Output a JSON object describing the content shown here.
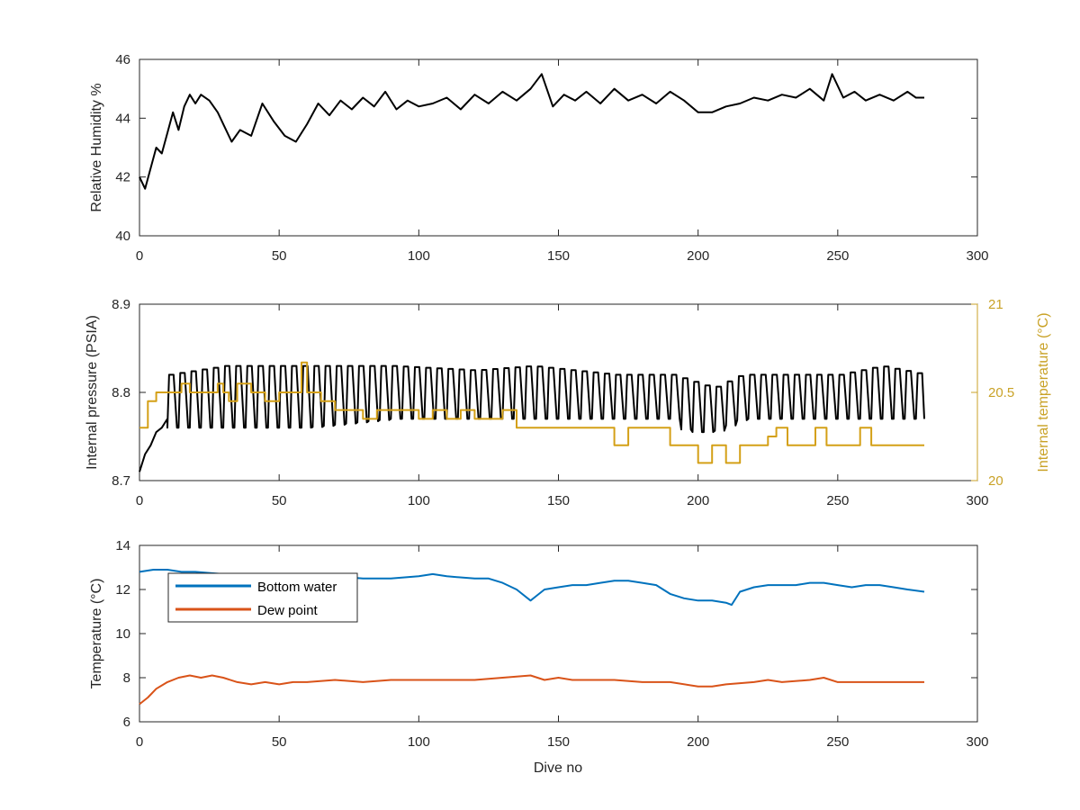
{
  "chart_data": [
    {
      "type": "line",
      "id": "humidity",
      "ylabel": "Relative Humidity %",
      "xlim": [
        0,
        300
      ],
      "ylim": [
        40,
        46
      ],
      "xticks": [
        "0",
        "50",
        "100",
        "150",
        "200",
        "250",
        "300"
      ],
      "yticks": [
        "40",
        "42",
        "44",
        "46"
      ],
      "series": [
        {
          "color": "#000000",
          "x": [
            0,
            2,
            4,
            6,
            8,
            10,
            12,
            14,
            16,
            18,
            20,
            22,
            25,
            28,
            30,
            33,
            36,
            40,
            44,
            48,
            52,
            56,
            60,
            64,
            68,
            72,
            76,
            80,
            84,
            88,
            92,
            96,
            100,
            105,
            110,
            115,
            120,
            125,
            130,
            135,
            140,
            144,
            148,
            152,
            156,
            160,
            165,
            170,
            175,
            180,
            185,
            190,
            195,
            200,
            205,
            210,
            215,
            220,
            225,
            230,
            235,
            240,
            245,
            248,
            252,
            256,
            260,
            265,
            270,
            275,
            278,
            281
          ],
          "y": [
            42.0,
            41.6,
            42.3,
            43.0,
            42.8,
            43.5,
            44.2,
            43.6,
            44.4,
            44.8,
            44.5,
            44.8,
            44.6,
            44.2,
            43.8,
            43.2,
            43.6,
            43.4,
            44.5,
            43.9,
            43.4,
            43.2,
            43.8,
            44.5,
            44.1,
            44.6,
            44.3,
            44.7,
            44.4,
            44.9,
            44.3,
            44.6,
            44.4,
            44.5,
            44.7,
            44.3,
            44.8,
            44.5,
            44.9,
            44.6,
            45.0,
            45.5,
            44.4,
            44.8,
            44.6,
            44.9,
            44.5,
            45.0,
            44.6,
            44.8,
            44.5,
            44.9,
            44.6,
            44.2,
            44.2,
            44.4,
            44.5,
            44.7,
            44.6,
            44.8,
            44.7,
            45.0,
            44.6,
            45.5,
            44.7,
            44.9,
            44.6,
            44.8,
            44.6,
            44.9,
            44.7,
            44.7
          ]
        }
      ]
    },
    {
      "type": "line",
      "id": "pressure",
      "ylabel": "Internal pressure (PSIA)",
      "ylabel_right": "Internal temperature (°C)",
      "xlim": [
        0,
        300
      ],
      "ylim": [
        8.7,
        8.9
      ],
      "ylim_right": [
        20,
        21
      ],
      "xticks": [
        "0",
        "50",
        "100",
        "150",
        "200",
        "250",
        "300"
      ],
      "yticks": [
        "8.7",
        "8.8",
        "8.9"
      ],
      "yticks_right": [
        "20",
        "20.5",
        "21"
      ],
      "series": [
        {
          "color": "#000000",
          "axis": "left",
          "oscillating_from": 10,
          "cycle_period": 4,
          "pre_x": [
            0,
            2,
            4,
            6,
            8,
            10
          ],
          "pre_y": [
            8.71,
            8.73,
            8.74,
            8.755,
            8.76,
            8.77
          ],
          "envelope_x": [
            10,
            30,
            60,
            90,
            120,
            140,
            170,
            190,
            195,
            205,
            215,
            250,
            265,
            281
          ],
          "envelope_hi": [
            8.82,
            8.83,
            8.83,
            8.83,
            8.825,
            8.83,
            8.82,
            8.82,
            8.815,
            8.805,
            8.82,
            8.82,
            8.83,
            8.82
          ],
          "envelope_lo": [
            8.76,
            8.76,
            8.76,
            8.77,
            8.77,
            8.77,
            8.77,
            8.77,
            8.755,
            8.755,
            8.77,
            8.77,
            8.77,
            8.77
          ]
        },
        {
          "color": "#D4A017",
          "axis": "right",
          "x": [
            0,
            3,
            6,
            10,
            15,
            18,
            20,
            25,
            28,
            30,
            32,
            35,
            40,
            45,
            50,
            55,
            58,
            60,
            65,
            70,
            75,
            80,
            85,
            90,
            95,
            100,
            105,
            110,
            115,
            120,
            125,
            130,
            135,
            140,
            145,
            150,
            155,
            160,
            165,
            170,
            175,
            180,
            185,
            190,
            195,
            200,
            205,
            210,
            215,
            220,
            225,
            228,
            232,
            238,
            242,
            246,
            250,
            255,
            258,
            262,
            270,
            281
          ],
          "y": [
            20.3,
            20.45,
            20.5,
            20.5,
            20.55,
            20.5,
            20.5,
            20.5,
            20.55,
            20.5,
            20.45,
            20.55,
            20.5,
            20.45,
            20.5,
            20.5,
            20.67,
            20.5,
            20.45,
            20.4,
            20.4,
            20.35,
            20.4,
            20.4,
            20.4,
            20.35,
            20.4,
            20.35,
            20.4,
            20.35,
            20.35,
            20.4,
            20.3,
            20.3,
            20.3,
            20.3,
            20.3,
            20.3,
            20.3,
            20.2,
            20.3,
            20.3,
            20.3,
            20.2,
            20.2,
            20.1,
            20.2,
            20.1,
            20.2,
            20.2,
            20.25,
            20.3,
            20.2,
            20.2,
            20.3,
            20.2,
            20.2,
            20.2,
            20.3,
            20.2,
            20.2,
            20.2
          ]
        }
      ]
    },
    {
      "type": "line",
      "id": "temperature",
      "xlabel": "Dive no",
      "ylabel": "Temperature (°C)",
      "xlim": [
        0,
        300
      ],
      "ylim": [
        6,
        14
      ],
      "xticks": [
        "0",
        "50",
        "100",
        "150",
        "200",
        "250",
        "300"
      ],
      "yticks": [
        "6",
        "8",
        "10",
        "12",
        "14"
      ],
      "legend": "top-left",
      "series": [
        {
          "name": "Bottom water",
          "color": "#0072BD",
          "x": [
            0,
            5,
            10,
            15,
            20,
            30,
            40,
            50,
            60,
            70,
            80,
            90,
            100,
            105,
            110,
            120,
            125,
            130,
            135,
            140,
            142,
            145,
            150,
            155,
            160,
            165,
            170,
            175,
            180,
            185,
            190,
            195,
            200,
            205,
            210,
            212,
            215,
            220,
            225,
            230,
            235,
            240,
            245,
            250,
            255,
            260,
            265,
            270,
            275,
            281
          ],
          "y": [
            12.8,
            12.9,
            12.9,
            12.8,
            12.8,
            12.7,
            12.7,
            12.6,
            12.6,
            12.6,
            12.5,
            12.5,
            12.6,
            12.7,
            12.6,
            12.5,
            12.5,
            12.3,
            12.0,
            11.5,
            11.7,
            12.0,
            12.1,
            12.2,
            12.2,
            12.3,
            12.4,
            12.4,
            12.3,
            12.2,
            11.8,
            11.6,
            11.5,
            11.5,
            11.4,
            11.3,
            11.9,
            12.1,
            12.2,
            12.2,
            12.2,
            12.3,
            12.3,
            12.2,
            12.1,
            12.2,
            12.2,
            12.1,
            12.0,
            11.9
          ]
        },
        {
          "name": "Dew point",
          "color": "#D95319",
          "x": [
            0,
            3,
            6,
            10,
            14,
            18,
            22,
            26,
            30,
            35,
            40,
            45,
            50,
            55,
            60,
            70,
            80,
            90,
            100,
            110,
            120,
            130,
            140,
            145,
            150,
            155,
            160,
            170,
            180,
            190,
            200,
            205,
            210,
            220,
            225,
            230,
            240,
            245,
            250,
            260,
            270,
            281
          ],
          "y": [
            6.8,
            7.1,
            7.5,
            7.8,
            8.0,
            8.1,
            8.0,
            8.1,
            8.0,
            7.8,
            7.7,
            7.8,
            7.7,
            7.8,
            7.8,
            7.9,
            7.8,
            7.9,
            7.9,
            7.9,
            7.9,
            8.0,
            8.1,
            7.9,
            8.0,
            7.9,
            7.9,
            7.9,
            7.8,
            7.8,
            7.6,
            7.6,
            7.7,
            7.8,
            7.9,
            7.8,
            7.9,
            8.0,
            7.8,
            7.8,
            7.8,
            7.8
          ]
        }
      ]
    }
  ]
}
